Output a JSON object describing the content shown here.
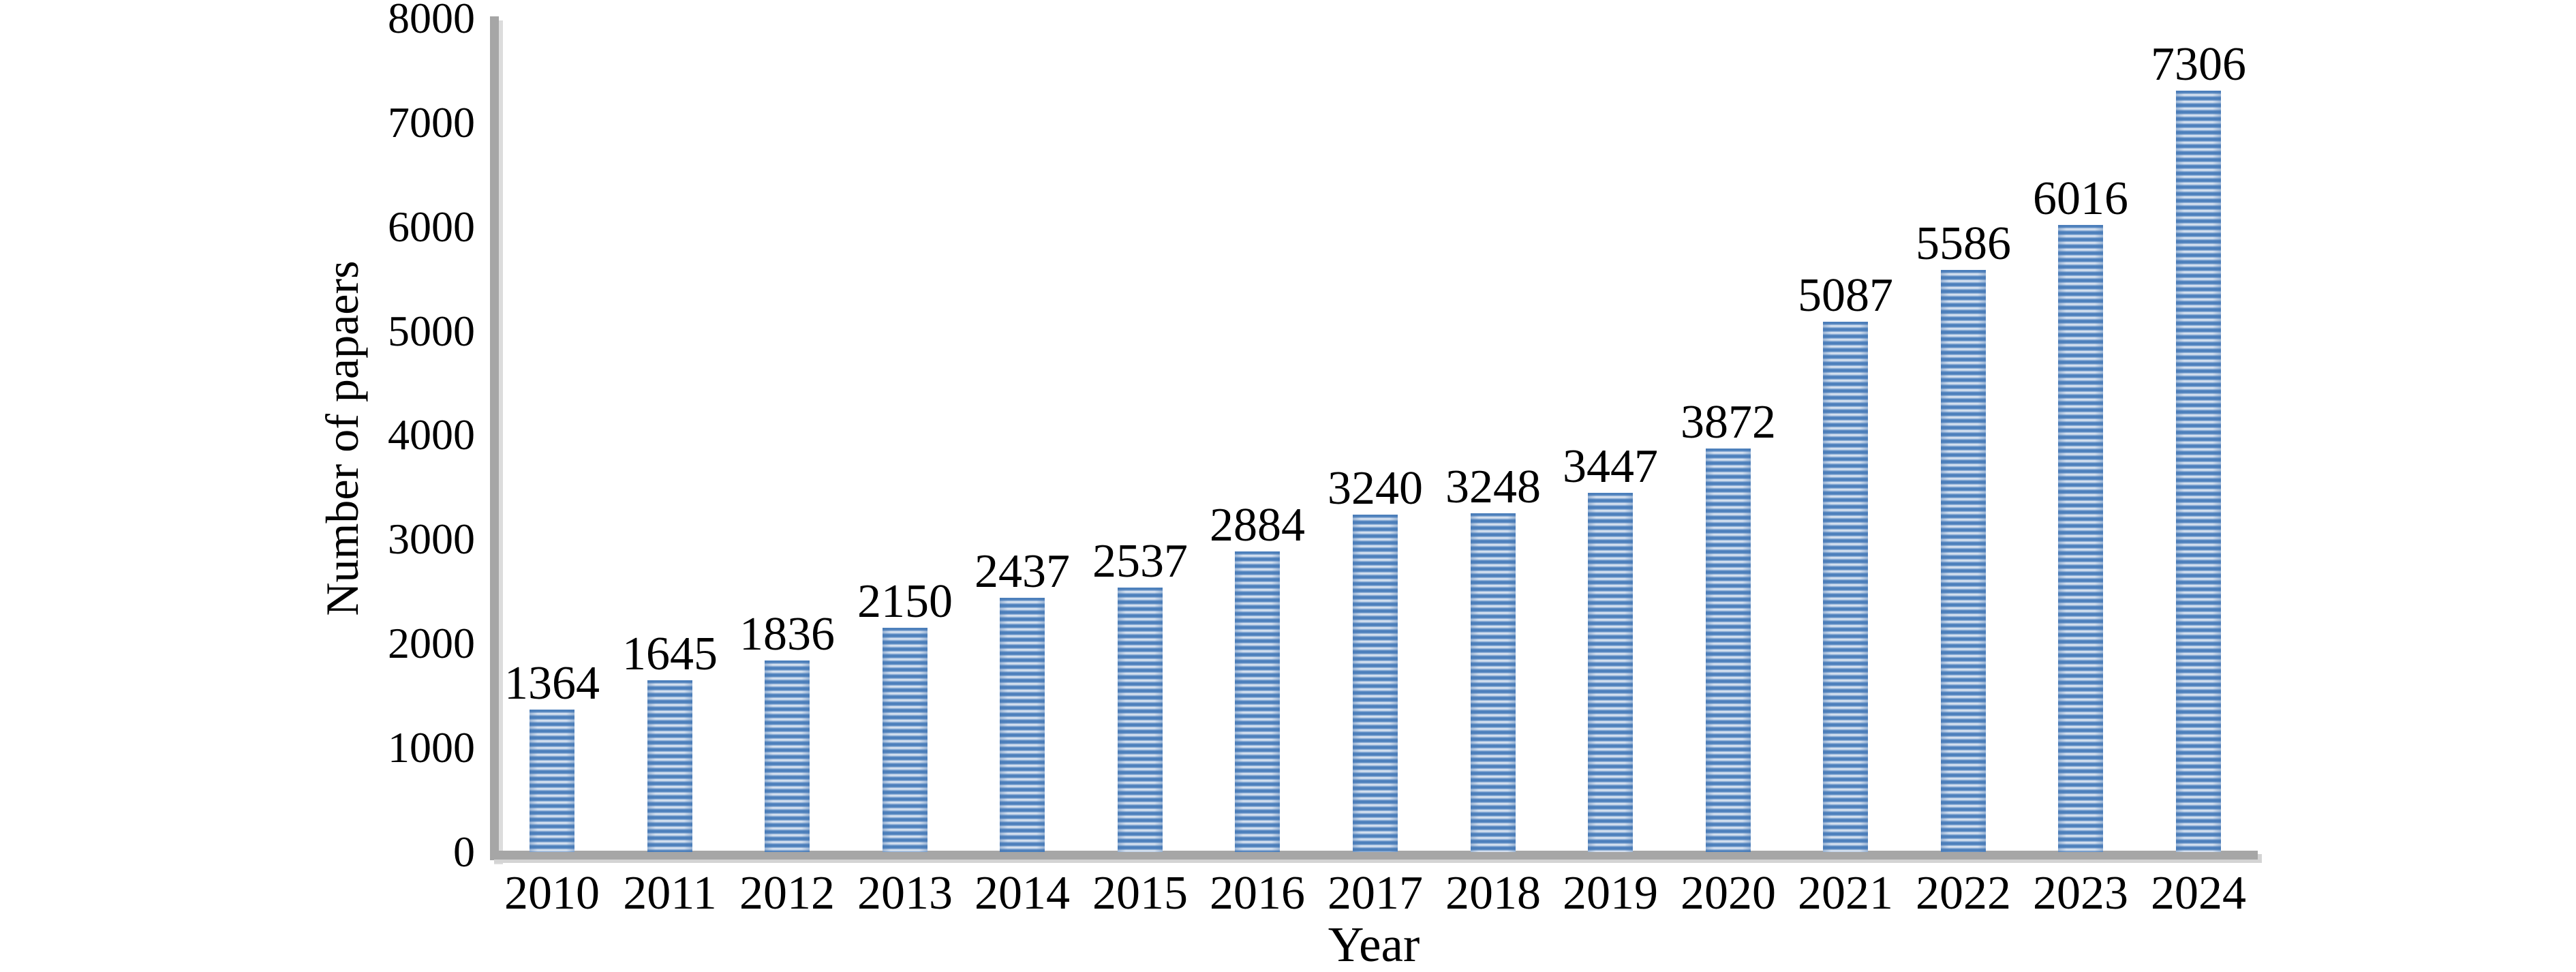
{
  "chart_data": {
    "type": "bar",
    "title": "",
    "xlabel": "Year",
    "ylabel": "Number of papaers",
    "categories": [
      "2010",
      "2011",
      "2012",
      "2013",
      "2014",
      "2015",
      "2016",
      "2017",
      "2018",
      "2019",
      "2020",
      "2021",
      "2022",
      "2023",
      "2024"
    ],
    "values": [
      1364,
      1645,
      1836,
      2150,
      2437,
      2537,
      2884,
      3240,
      3248,
      3447,
      3872,
      5087,
      5586,
      6016,
      7306
    ],
    "bar_value_labels": [
      "1364",
      "1645",
      "1836",
      "2150",
      "2437",
      "2537",
      "2884",
      "3240",
      "3248",
      "3447",
      "3872",
      "5087",
      "5586",
      "6016",
      "7306"
    ],
    "yticks": [
      0,
      1000,
      2000,
      3000,
      4000,
      5000,
      6000,
      7000,
      8000
    ],
    "ytick_labels": [
      "0",
      "1000",
      "2000",
      "3000",
      "4000",
      "5000",
      "6000",
      "7000",
      "8000"
    ],
    "ylim": [
      0,
      8000
    ],
    "grid": "off",
    "legend": "none",
    "colors": {
      "bar_stripe_dark": "#4d80bc",
      "bar_stripe_light": "#d7e2f0",
      "axis_line": "#a6a6a6",
      "axis_shadow": "#d4d4d4",
      "text": "#000000",
      "background": "#ffffff"
    }
  }
}
